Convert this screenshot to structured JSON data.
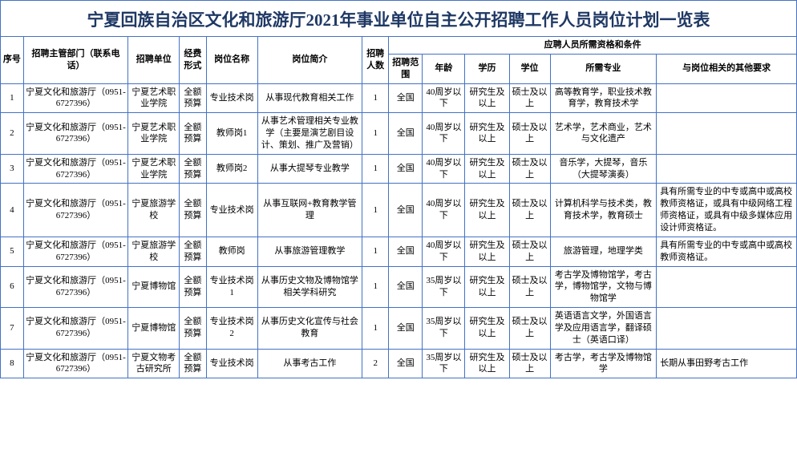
{
  "title": "宁夏回族自治区文化和旅游厅2021年事业单位自主公开招聘工作人员岗位计划一览表",
  "colors": {
    "border": "#4472c4",
    "title_text": "#1f3864",
    "cell_text": "#000000",
    "background": "#ffffff"
  },
  "headers": {
    "seq": "序号",
    "dept": "招聘主管部门（联系电话）",
    "unit": "招聘单位",
    "fund": "经费形式",
    "posname": "岗位名称",
    "desc": "岗位简介",
    "count": "招聘人数",
    "qual_group": "应聘人员所需资格和条件",
    "scope": "招聘范围",
    "age": "年龄",
    "edu": "学历",
    "degree": "学位",
    "major": "所需专业",
    "other": "与岗位相关的其他要求"
  },
  "rows": [
    {
      "seq": "1",
      "dept": "宁夏文化和旅游厅（0951-6727396）",
      "unit": "宁夏艺术职业学院",
      "fund": "全额预算",
      "posname": "专业技术岗",
      "desc": "从事现代教育相关工作",
      "count": "1",
      "scope": "全国",
      "age": "40周岁以下",
      "edu": "研究生及以上",
      "degree": "硕士及以上",
      "major": "高等教育学，职业技术教育学，教育技术学",
      "other": ""
    },
    {
      "seq": "2",
      "dept": "宁夏文化和旅游厅（0951-6727396）",
      "unit": "宁夏艺术职业学院",
      "fund": "全额预算",
      "posname": "教师岗1",
      "desc": "从事艺术管理相关专业教学（主要是演艺剧目设计、策划、推广及营销）",
      "count": "1",
      "scope": "全国",
      "age": "40周岁以下",
      "edu": "研究生及以上",
      "degree": "硕士及以上",
      "major": "艺术学，艺术商业，艺术与文化遗产",
      "other": ""
    },
    {
      "seq": "3",
      "dept": "宁夏文化和旅游厅（0951-6727396）",
      "unit": "宁夏艺术职业学院",
      "fund": "全额预算",
      "posname": "教师岗2",
      "desc": "从事大提琴专业教学",
      "count": "1",
      "scope": "全国",
      "age": "40周岁以下",
      "edu": "研究生及以上",
      "degree": "硕士及以上",
      "major": "音乐学，大提琴，音乐（大提琴演奏）",
      "other": ""
    },
    {
      "seq": "4",
      "dept": "宁夏文化和旅游厅（0951-6727396）",
      "unit": "宁夏旅游学校",
      "fund": "全额预算",
      "posname": "专业技术岗",
      "desc": "从事互联网+教育教学管理",
      "count": "1",
      "scope": "全国",
      "age": "40周岁以下",
      "edu": "研究生及以上",
      "degree": "硕士及以上",
      "major": "计算机科学与技术类，教育技术学，教育硕士",
      "other": "具有所需专业的中专或高中或高校教师资格证，或具有中级网络工程师资格证，或具有中级多媒体应用设计师资格证。"
    },
    {
      "seq": "5",
      "dept": "宁夏文化和旅游厅（0951-6727396）",
      "unit": "宁夏旅游学校",
      "fund": "全额预算",
      "posname": "教师岗",
      "desc": "从事旅游管理教学",
      "count": "1",
      "scope": "全国",
      "age": "40周岁以下",
      "edu": "研究生及以上",
      "degree": "硕士及以上",
      "major": "旅游管理，地理学类",
      "other": "具有所需专业的中专或高中或高校教师资格证。"
    },
    {
      "seq": "6",
      "dept": "宁夏文化和旅游厅（0951-6727396）",
      "unit": "宁夏博物馆",
      "fund": "全额预算",
      "posname": "专业技术岗1",
      "desc": "从事历史文物及博物馆学相关学科研究",
      "count": "1",
      "scope": "全国",
      "age": "35周岁以下",
      "edu": "研究生及以上",
      "degree": "硕士及以上",
      "major": "考古学及博物馆学，考古学，博物馆学，文物与博物馆学",
      "other": ""
    },
    {
      "seq": "7",
      "dept": "宁夏文化和旅游厅（0951-6727396）",
      "unit": "宁夏博物馆",
      "fund": "全额预算",
      "posname": "专业技术岗2",
      "desc": "从事历史文化宣传与社会教育",
      "count": "1",
      "scope": "全国",
      "age": "35周岁以下",
      "edu": "研究生及以上",
      "degree": "硕士及以上",
      "major": "英语语言文学，外国语言学及应用语言学，翻译硕士（英语口译）",
      "other": ""
    },
    {
      "seq": "8",
      "dept": "宁夏文化和旅游厅（0951-6727396）",
      "unit": "宁夏文物考古研究所",
      "fund": "全额预算",
      "posname": "专业技术岗",
      "desc": "从事考古工作",
      "count": "2",
      "scope": "全国",
      "age": "35周岁以下",
      "edu": "研究生及以上",
      "degree": "硕士及以上",
      "major": "考古学，考古学及博物馆学",
      "other": "长期从事田野考古工作"
    }
  ]
}
